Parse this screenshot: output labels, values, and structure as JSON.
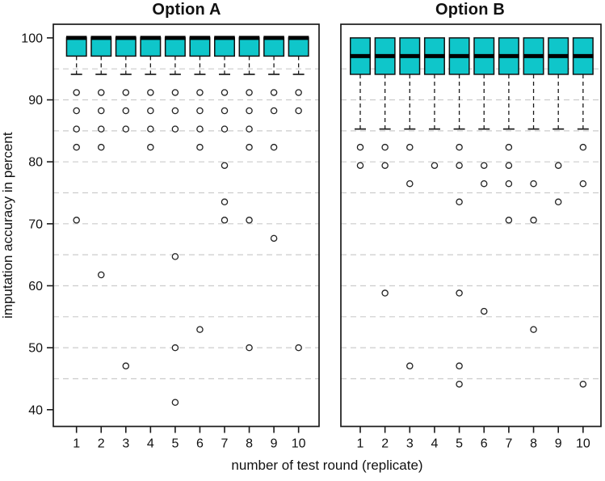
{
  "figure": {
    "ylabel": "imputation accuracy in percent",
    "xlabel": "number of test round (replicate)",
    "colors": {
      "box_fill": "#0fc6ca",
      "box_border": "#111111",
      "median": "#000000",
      "frame": "#1a1a1a",
      "gridline": "#cccccc",
      "outlier_fill": "#ffffff",
      "outlier_stroke": "#222222",
      "background": "#ffffff"
    }
  },
  "chart_data": [
    {
      "type": "boxplot",
      "title": "Option A",
      "categories": [
        "1",
        "2",
        "3",
        "4",
        "5",
        "6",
        "7",
        "8",
        "9",
        "10"
      ],
      "xlabel": "number of test round (replicate)",
      "ylabel": "imputation accuracy in percent",
      "y_ticks": [
        40,
        50,
        60,
        70,
        80,
        90,
        100
      ],
      "gridlines": [
        45,
        50,
        55,
        60,
        65,
        70,
        75,
        80,
        85,
        90,
        95
      ],
      "ylim": [
        37.3,
        102.2
      ],
      "grid_dashed": true,
      "legend": null,
      "boxes": [
        {
          "category": "1",
          "whisker_low": 94.12,
          "q1": 97.06,
          "median": 100,
          "q3": 100,
          "whisker_high": 100,
          "outliers": [
            91.18,
            88.24,
            85.29,
            82.35,
            70.59
          ]
        },
        {
          "category": "2",
          "whisker_low": 94.12,
          "q1": 97.06,
          "median": 100,
          "q3": 100,
          "whisker_high": 100,
          "outliers": [
            91.18,
            88.24,
            85.29,
            82.35,
            61.76
          ]
        },
        {
          "category": "3",
          "whisker_low": 94.12,
          "q1": 97.06,
          "median": 100,
          "q3": 100,
          "whisker_high": 100,
          "outliers": [
            91.18,
            88.24,
            85.29,
            47.06
          ]
        },
        {
          "category": "4",
          "whisker_low": 94.12,
          "q1": 97.06,
          "median": 100,
          "q3": 100,
          "whisker_high": 100,
          "outliers": [
            91.18,
            88.24,
            85.29,
            82.35
          ]
        },
        {
          "category": "5",
          "whisker_low": 94.12,
          "q1": 97.06,
          "median": 100,
          "q3": 100,
          "whisker_high": 100,
          "outliers": [
            91.18,
            88.24,
            85.29,
            64.71,
            50.0,
            41.18
          ]
        },
        {
          "category": "6",
          "whisker_low": 94.12,
          "q1": 97.06,
          "median": 100,
          "q3": 100,
          "whisker_high": 100,
          "outliers": [
            91.18,
            88.24,
            85.29,
            82.35,
            52.94
          ]
        },
        {
          "category": "7",
          "whisker_low": 94.12,
          "q1": 97.06,
          "median": 100,
          "q3": 100,
          "whisker_high": 100,
          "outliers": [
            91.18,
            88.24,
            85.29,
            79.41,
            73.53,
            70.59
          ]
        },
        {
          "category": "8",
          "whisker_low": 94.12,
          "q1": 97.06,
          "median": 100,
          "q3": 100,
          "whisker_high": 100,
          "outliers": [
            91.18,
            88.24,
            85.29,
            82.35,
            70.59,
            50.0
          ]
        },
        {
          "category": "9",
          "whisker_low": 94.12,
          "q1": 97.06,
          "median": 100,
          "q3": 100,
          "whisker_high": 100,
          "outliers": [
            91.18,
            88.24,
            82.35,
            67.65
          ]
        },
        {
          "category": "10",
          "whisker_low": 94.12,
          "q1": 97.06,
          "median": 100,
          "q3": 100,
          "whisker_high": 100,
          "outliers": [
            91.18,
            88.24,
            50.0
          ]
        }
      ]
    },
    {
      "type": "boxplot",
      "title": "Option B",
      "categories": [
        "1",
        "2",
        "3",
        "4",
        "5",
        "6",
        "7",
        "8",
        "9",
        "10"
      ],
      "xlabel": "number of test round (replicate)",
      "ylabel": "imputation accuracy in percent",
      "y_ticks": [
        40,
        50,
        60,
        70,
        80,
        90,
        100
      ],
      "gridlines": [
        45,
        50,
        55,
        60,
        65,
        70,
        75,
        80,
        85,
        90,
        95
      ],
      "ylim": [
        37.3,
        102.2
      ],
      "grid_dashed": true,
      "legend": null,
      "boxes": [
        {
          "category": "1",
          "whisker_low": 85.29,
          "q1": 94.12,
          "median": 97.06,
          "q3": 100,
          "whisker_high": 100,
          "outliers": [
            82.35,
            79.41
          ]
        },
        {
          "category": "2",
          "whisker_low": 85.29,
          "q1": 94.12,
          "median": 97.06,
          "q3": 100,
          "whisker_high": 100,
          "outliers": [
            82.35,
            79.41,
            58.82
          ]
        },
        {
          "category": "3",
          "whisker_low": 85.29,
          "q1": 94.12,
          "median": 97.06,
          "q3": 100,
          "whisker_high": 100,
          "outliers": [
            82.35,
            76.47,
            47.06
          ]
        },
        {
          "category": "4",
          "whisker_low": 85.29,
          "q1": 94.12,
          "median": 97.06,
          "q3": 100,
          "whisker_high": 100,
          "outliers": [
            79.41
          ]
        },
        {
          "category": "5",
          "whisker_low": 85.29,
          "q1": 94.12,
          "median": 97.06,
          "q3": 100,
          "whisker_high": 100,
          "outliers": [
            82.35,
            79.41,
            73.53,
            58.82,
            47.06,
            44.12
          ]
        },
        {
          "category": "6",
          "whisker_low": 85.29,
          "q1": 94.12,
          "median": 97.06,
          "q3": 100,
          "whisker_high": 100,
          "outliers": [
            79.41,
            76.47,
            55.88
          ]
        },
        {
          "category": "7",
          "whisker_low": 85.29,
          "q1": 94.12,
          "median": 97.06,
          "q3": 100,
          "whisker_high": 100,
          "outliers": [
            82.35,
            79.41,
            76.47,
            70.59
          ]
        },
        {
          "category": "8",
          "whisker_low": 85.29,
          "q1": 94.12,
          "median": 97.06,
          "q3": 100,
          "whisker_high": 100,
          "outliers": [
            76.47,
            70.59,
            52.94
          ]
        },
        {
          "category": "9",
          "whisker_low": 85.29,
          "q1": 94.12,
          "median": 97.06,
          "q3": 100,
          "whisker_high": 100,
          "outliers": [
            79.41,
            73.53
          ]
        },
        {
          "category": "10",
          "whisker_low": 85.29,
          "q1": 94.12,
          "median": 97.06,
          "q3": 100,
          "whisker_high": 100,
          "outliers": [
            82.35,
            76.47,
            44.12
          ]
        }
      ]
    }
  ]
}
